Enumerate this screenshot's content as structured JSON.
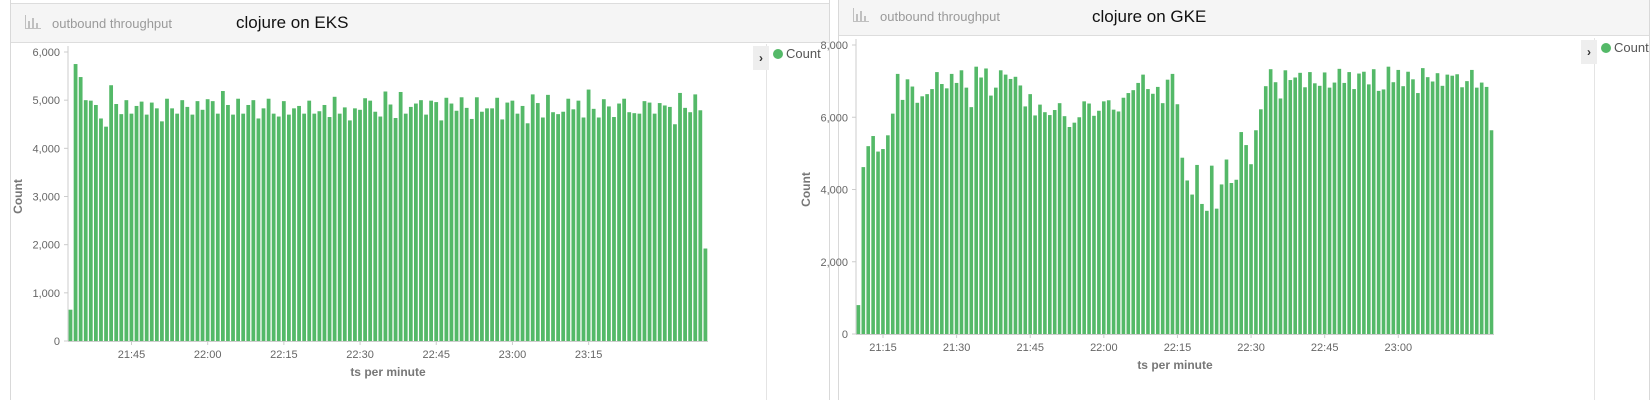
{
  "colors": {
    "bar": "#54b968",
    "axis": "#cccccc",
    "tick_text": "#666666",
    "axis_title": "#777777"
  },
  "panels": [
    {
      "header_label": "outbound throughput",
      "header_icon": "bar-chart-icon",
      "title": "clojure on EKS",
      "legend_toggle_icon": "chevron-right-icon",
      "legend": [
        "Count"
      ]
    },
    {
      "header_label": "outbound throughput",
      "header_icon": "bar-chart-icon",
      "title": "clojure on GKE",
      "legend_toggle_icon": "chevron-right-icon",
      "legend": [
        "Count"
      ]
    }
  ],
  "chart_data": [
    {
      "type": "bar",
      "title": "clojure on EKS",
      "xlabel": "ts per minute",
      "ylabel": "Count",
      "ylim": [
        0,
        6000
      ],
      "yticks": [
        0,
        1000,
        2000,
        3000,
        4000,
        5000,
        6000
      ],
      "ytick_labels": [
        "0",
        "1,000",
        "2,000",
        "3,000",
        "4,000",
        "5,000",
        "6,000"
      ],
      "x_start": "21:33",
      "xtick_labels": [
        "21:45",
        "22:00",
        "22:15",
        "22:30",
        "22:45",
        "23:00",
        "23:15"
      ],
      "xtick_index": [
        12,
        27,
        42,
        57,
        72,
        87,
        102
      ],
      "legend": "top-right",
      "grid": false,
      "series": [
        {
          "name": "Count",
          "values": [
            650,
            5750,
            5480,
            5000,
            4990,
            4900,
            4620,
            4450,
            5310,
            4920,
            4710,
            5000,
            4720,
            4880,
            4970,
            4700,
            4950,
            4830,
            4560,
            5030,
            4830,
            4720,
            5000,
            4860,
            4700,
            4980,
            4800,
            5020,
            4980,
            4720,
            5190,
            4900,
            4700,
            5030,
            4720,
            4900,
            5000,
            4620,
            4830,
            5030,
            4720,
            4660,
            4980,
            4700,
            4830,
            4880,
            4720,
            4990,
            4720,
            4770,
            4900,
            4650,
            5070,
            4720,
            4850,
            4580,
            4830,
            4800,
            5040,
            4990,
            4760,
            4660,
            5180,
            4910,
            4630,
            5170,
            4720,
            4860,
            4930,
            5000,
            4700,
            4990,
            4960,
            4580,
            5050,
            4930,
            4780,
            5060,
            4840,
            4610,
            5060,
            4760,
            4830,
            4830,
            5050,
            4600,
            4950,
            4990,
            4720,
            4880,
            4520,
            5120,
            4940,
            4640,
            5110,
            4750,
            4710,
            4760,
            5030,
            4810,
            4990,
            4640,
            5220,
            4820,
            4640,
            5020,
            4870,
            4650,
            4930,
            5030,
            4750,
            4730,
            4720,
            4980,
            4950,
            4720,
            4940,
            4890,
            4860,
            4500,
            5150,
            4840,
            4750,
            5120,
            4790,
            1920
          ]
        }
      ]
    },
    {
      "type": "bar",
      "title": "clojure on GKE",
      "xlabel": "ts per minute",
      "ylabel": "Count",
      "ylim": [
        0,
        8000
      ],
      "yticks": [
        0,
        2000,
        4000,
        6000,
        8000
      ],
      "ytick_labels": [
        "0",
        "2,000",
        "4,000",
        "6,000",
        "8,000"
      ],
      "x_start": "21:10",
      "xtick_labels": [
        "21:15",
        "21:30",
        "21:45",
        "22:00",
        "22:15",
        "22:30",
        "22:45",
        "23:00"
      ],
      "xtick_index": [
        5,
        20,
        35,
        50,
        65,
        80,
        95,
        110
      ],
      "legend": "top-right",
      "grid": false,
      "series": [
        {
          "name": "Count",
          "values": [
            800,
            4620,
            5200,
            5480,
            5050,
            5120,
            5500,
            6100,
            7200,
            6480,
            7050,
            6850,
            6400,
            6580,
            6640,
            6780,
            7250,
            6920,
            6800,
            7200,
            6950,
            7300,
            6820,
            6280,
            7400,
            7100,
            7350,
            6600,
            6820,
            7300,
            7180,
            7060,
            7120,
            6880,
            6300,
            6640,
            6050,
            6350,
            6140,
            6060,
            6200,
            6390,
            6030,
            5730,
            5850,
            6000,
            6440,
            6380,
            6040,
            6180,
            6440,
            6470,
            6210,
            6160,
            6540,
            6670,
            6750,
            6950,
            7180,
            6780,
            6650,
            6840,
            6390,
            7040,
            7200,
            6360,
            4880,
            4250,
            3860,
            4680,
            3600,
            3410,
            4660,
            3470,
            4140,
            4830,
            4180,
            4270,
            5590,
            5230,
            4700,
            5640,
            6220,
            6860,
            7330,
            6970,
            6520,
            7300,
            7030,
            7100,
            7230,
            6830,
            7250,
            6940,
            6870,
            7240,
            6820,
            6960,
            7340,
            6950,
            7250,
            6780,
            7210,
            7260,
            6910,
            7330,
            6730,
            6770,
            7400,
            6970,
            7310,
            6860,
            7260,
            7050,
            6670,
            7360,
            7110,
            6990,
            7220,
            6870,
            7180,
            7150,
            7190,
            6830,
            7000,
            7310,
            6820,
            6960,
            6840,
            5640
          ]
        }
      ]
    }
  ]
}
